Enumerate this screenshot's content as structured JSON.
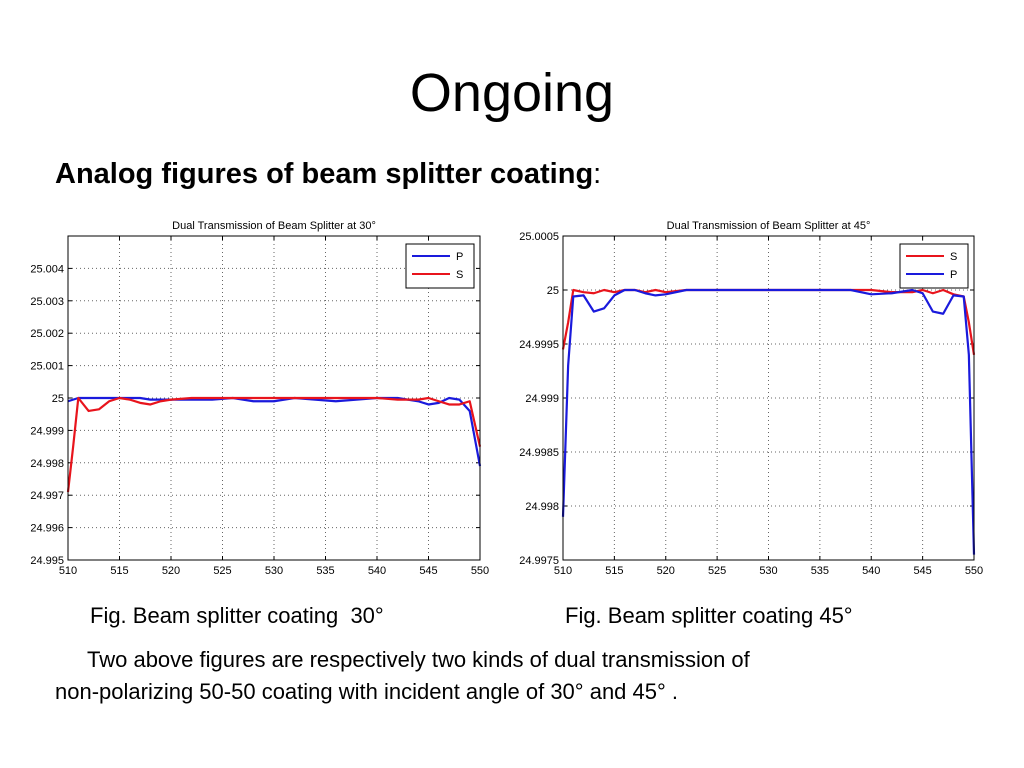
{
  "slide": {
    "title": "Ongoing",
    "subtitle": "Analog figures of beam splitter coating",
    "subtitle_punct": ":",
    "caption_left": "Fig. Beam splitter coating  30°",
    "caption_right": "Fig. Beam splitter coating 45°",
    "description_line1": "Two above figures are respectively two kinds of dual transmission of",
    "description_line2": "non-polarizing 50-50 coating with incident angle of 30°  and 45°  ."
  },
  "colors": {
    "red": "#e8141c",
    "blue": "#1a1adc",
    "grid": "#666666"
  },
  "chart_data": [
    {
      "type": "line",
      "title": "Dual Transmission of Beam Splitter at 30°",
      "xlim": [
        510,
        550
      ],
      "ylim": [
        24.995,
        25.005
      ],
      "xticks": [
        510,
        515,
        520,
        525,
        530,
        535,
        540,
        545,
        550
      ],
      "xtick_labels": [
        "510",
        "515",
        "520",
        "525",
        "530",
        "535",
        "540",
        "545",
        "550"
      ],
      "yticks": [
        24.995,
        24.996,
        24.997,
        24.998,
        24.999,
        25,
        25.001,
        25.002,
        25.003,
        25.004
      ],
      "ytick_labels": [
        "24.995",
        "24.996",
        "24.997",
        "24.998",
        "24.999",
        "25",
        "25.001",
        "25.002",
        "25.003",
        "25.004"
      ],
      "grid": true,
      "legend_position": "top-right",
      "series": [
        {
          "name": "P",
          "color": "#1a1adc",
          "x": [
            510,
            511,
            512,
            513,
            514,
            515,
            516,
            517,
            518,
            519,
            520,
            522,
            524,
            526,
            528,
            530,
            532,
            534,
            536,
            538,
            540,
            542,
            544,
            545,
            546,
            547,
            548,
            549,
            550
          ],
          "y": [
            24.9999,
            25.0,
            25.0,
            25.0,
            25.0,
            25.0,
            25.0,
            25.0,
            24.99995,
            24.99995,
            24.99995,
            24.99995,
            24.99995,
            25.0,
            24.9999,
            24.9999,
            25.0,
            24.99995,
            24.9999,
            24.99995,
            25.0,
            25.0,
            24.9999,
            24.9998,
            24.99985,
            25.0,
            24.99995,
            24.9996,
            24.9979
          ]
        },
        {
          "name": "S",
          "color": "#e8141c",
          "x": [
            510,
            510.5,
            511,
            512,
            513,
            514,
            515,
            516,
            517,
            518,
            519,
            520,
            522,
            524,
            526,
            528,
            530,
            532,
            534,
            536,
            538,
            540,
            542,
            544,
            545,
            546,
            547,
            548,
            549,
            550
          ],
          "y": [
            24.9971,
            24.9985,
            25.0,
            24.9996,
            24.99965,
            24.9999,
            25.0,
            24.99995,
            24.99985,
            24.9998,
            24.9999,
            24.99995,
            25.0,
            25.0,
            25.0,
            25.0,
            25.0,
            25.0,
            25.0,
            25.0,
            25.0,
            25.0,
            24.99995,
            24.99995,
            25.0,
            24.9999,
            24.9998,
            24.9998,
            24.9999,
            24.9985
          ]
        }
      ]
    },
    {
      "type": "line",
      "title": "Dual Transmission of Beam Splitter at 45°",
      "xlim": [
        510,
        550
      ],
      "ylim": [
        24.9975,
        25.0005
      ],
      "xticks": [
        510,
        515,
        520,
        525,
        530,
        535,
        540,
        545,
        550
      ],
      "xtick_labels": [
        "510",
        "515",
        "520",
        "525",
        "530",
        "535",
        "540",
        "545",
        "550"
      ],
      "yticks": [
        24.9975,
        24.998,
        24.9985,
        24.999,
        24.9995,
        25,
        25.0005
      ],
      "ytick_labels": [
        "24.9975",
        "24.998",
        "24.9985",
        "24.999",
        "24.9995",
        "25",
        "25.0005"
      ],
      "grid": true,
      "legend_position": "top-right",
      "series": [
        {
          "name": "S",
          "color": "#e8141c",
          "x": [
            510,
            510.5,
            511,
            512,
            513,
            514,
            515,
            516,
            517,
            518,
            519,
            520,
            522,
            524,
            526,
            528,
            530,
            532,
            534,
            536,
            538,
            540,
            542,
            544,
            545,
            546,
            547,
            548,
            549,
            549.5,
            550
          ],
          "y": [
            24.99945,
            24.9997,
            25.0,
            24.99998,
            24.99997,
            25.0,
            24.99998,
            25.0,
            25.0,
            24.99998,
            25.0,
            24.99998,
            25.0,
            25.0,
            25.0,
            25.0,
            25.0,
            25.0,
            25.0,
            25.0,
            25.0,
            25.0,
            24.99998,
            24.99998,
            25.0,
            24.99997,
            25.0,
            24.99996,
            24.99994,
            24.9997,
            24.9994
          ]
        },
        {
          "name": "P",
          "color": "#1a1adc",
          "x": [
            510,
            510.5,
            511,
            512,
            513,
            514,
            515,
            516,
            517,
            518,
            519,
            520,
            522,
            524,
            526,
            528,
            530,
            532,
            534,
            536,
            538,
            540,
            542,
            544,
            545,
            546,
            547,
            548,
            549,
            549.5,
            550
          ],
          "y": [
            24.9979,
            24.9993,
            24.99994,
            24.99995,
            24.9998,
            24.99983,
            24.99995,
            25.0,
            25.0,
            24.99997,
            24.99995,
            24.99996,
            25.0,
            25.0,
            25.0,
            25.0,
            25.0,
            25.0,
            25.0,
            25.0,
            25.0,
            24.99996,
            24.99997,
            25.0,
            24.99997,
            24.9998,
            24.99978,
            24.99995,
            24.99994,
            24.9994,
            24.99755
          ]
        }
      ]
    }
  ]
}
